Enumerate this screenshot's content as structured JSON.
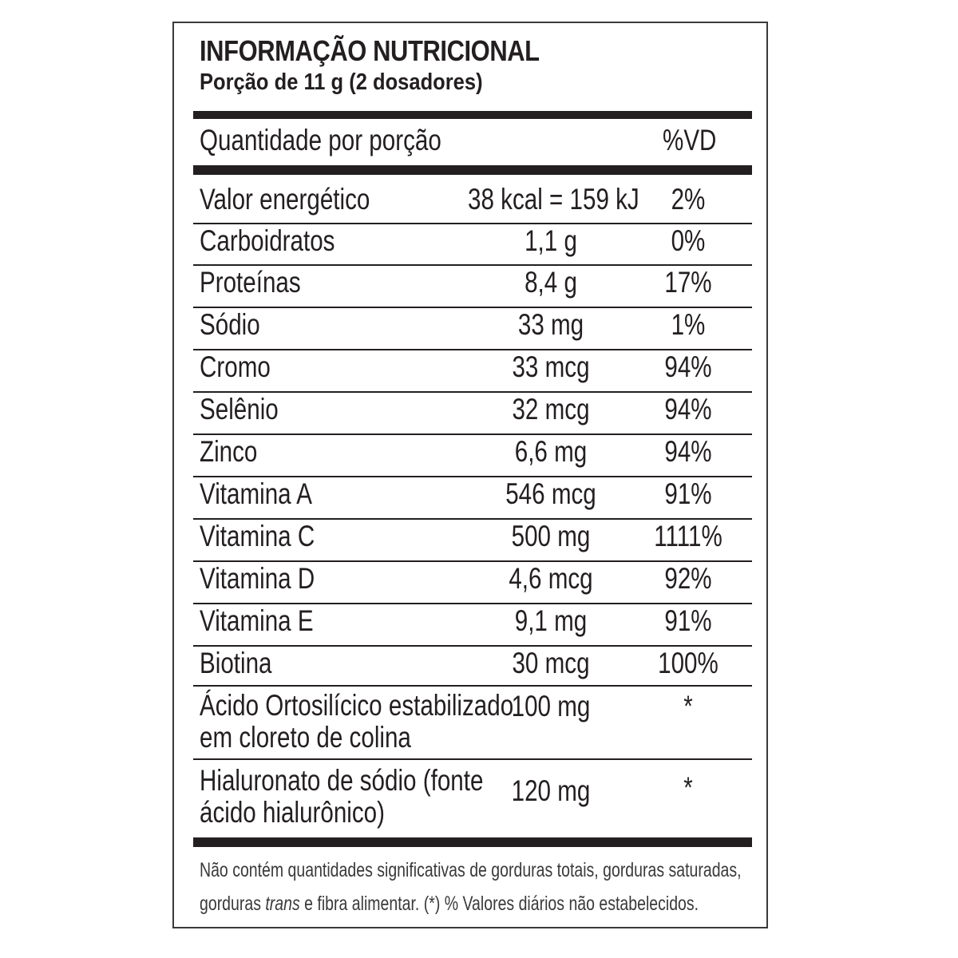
{
  "label": {
    "title": "INFORMAÇÃO NUTRICIONAL",
    "serving": "Porção de 11 g (2 dosadores)",
    "column_quantity": "Quantidade por porção",
    "column_vd": "%VD",
    "rows": [
      {
        "name": "Valor energético",
        "amount": "38 kcal = 159 kJ",
        "vd": "2%"
      },
      {
        "name": "Carboidratos",
        "amount": "1,1 g",
        "vd": "0%"
      },
      {
        "name": "Proteínas",
        "amount": "8,4 g",
        "vd": "17%"
      },
      {
        "name": "Sódio",
        "amount": "33 mg",
        "vd": "1%"
      },
      {
        "name": "Cromo",
        "amount": "33 mcg",
        "vd": "94%"
      },
      {
        "name": "Selênio",
        "amount": "32 mcg",
        "vd": "94%"
      },
      {
        "name": "Zinco",
        "amount": "6,6 mg",
        "vd": "94%"
      },
      {
        "name": "Vitamina A",
        "amount": "546 mcg",
        "vd": "91%"
      },
      {
        "name": "Vitamina C",
        "amount": "500 mg",
        "vd": "1111%"
      },
      {
        "name": "Vitamina D",
        "amount": "4,6 mcg",
        "vd": "92%"
      },
      {
        "name": "Vitamina E",
        "amount": "9,1 mg",
        "vd": "91%"
      },
      {
        "name": "Biotina",
        "amount": "30 mcg",
        "vd": "100%"
      },
      {
        "name_line1": "Ácido Ortosilícico estabilizado",
        "name_line2": "em cloreto de colina",
        "amount": "100 mg",
        "vd": "*"
      },
      {
        "name_line1": "Hialuronato de sódio (fonte",
        "name_line2": "ácido hialurônico)",
        "amount": "120 mg",
        "vd": "*"
      }
    ],
    "footnote_part1": "Não contém quantidades significativas de gorduras totais, gorduras saturadas,",
    "footnote_part2": "gorduras ",
    "footnote_trans": "trans",
    "footnote_part3": " e fibra alimentar. (*) % Valores diários não estabelecidos."
  }
}
